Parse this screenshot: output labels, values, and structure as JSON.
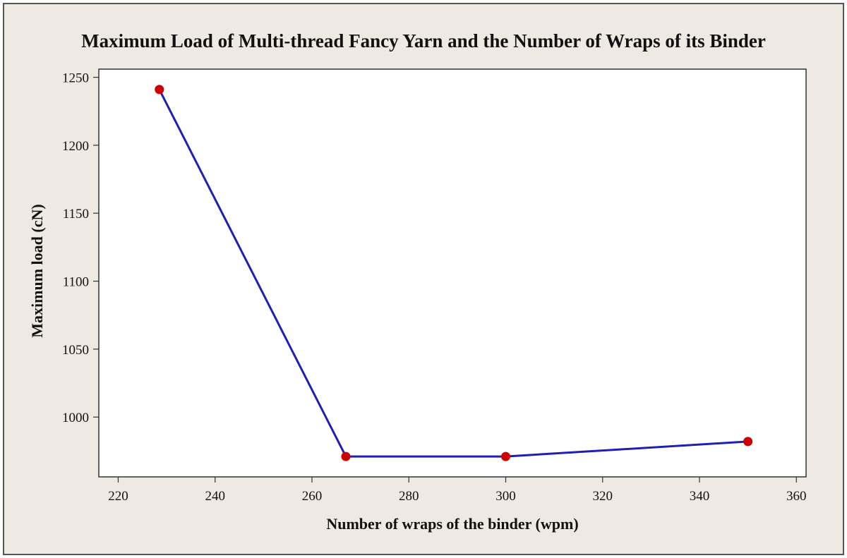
{
  "chart_data": {
    "type": "line",
    "title": "Maximum Load of Multi-thread Fancy Yarn and the Number of Wraps of its Binder",
    "xlabel": "Number of wraps of the binder (wpm)",
    "ylabel": "Maximum load (cN)",
    "xlim": [
      216,
      362
    ],
    "ylim": [
      956,
      1256
    ],
    "xticks": [
      220,
      240,
      260,
      280,
      300,
      320,
      340,
      360
    ],
    "yticks": [
      1000,
      1050,
      1100,
      1150,
      1200,
      1250
    ],
    "grid": false,
    "series": [
      {
        "name": "Maximum load",
        "x": [
          228.5,
          267,
          300,
          350
        ],
        "y": [
          1241,
          971,
          971,
          982
        ],
        "line_color": "#1f1fb4",
        "marker_color": "#cc0000"
      }
    ]
  }
}
